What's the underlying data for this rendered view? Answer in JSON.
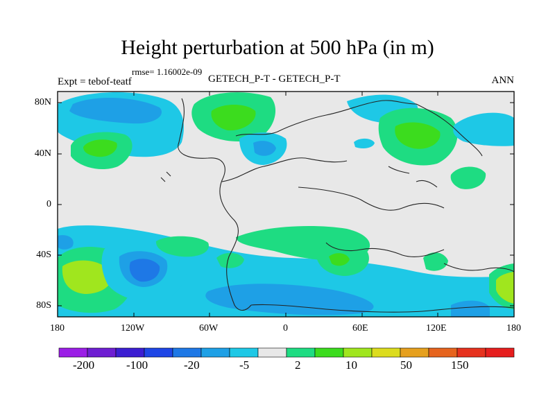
{
  "title": "Height perturbation at 500 hPa (in m)",
  "rmse": "rmse= 1.16002e-09",
  "left_label": "Expt = tebof-teatf",
  "center_label": "GETECH_P-T - GETECH_P-T",
  "season_label": "ANN",
  "y_ticks": [
    "80N",
    "40N",
    "0",
    "40S",
    "80S"
  ],
  "x_ticks": [
    "180",
    "120W",
    "60W",
    "0",
    "60E",
    "120E",
    "180"
  ],
  "colorbar": {
    "colors": [
      "#9b1ee6",
      "#6e1ed2",
      "#3c1ed2",
      "#1e46e6",
      "#1e78e6",
      "#1ea0e6",
      "#1ec8e6",
      "#e8e8e8",
      "#1edc82",
      "#3cdc1e",
      "#a0e61e",
      "#dcdc1e",
      "#e6a01e",
      "#e6641e",
      "#e6321e",
      "#e61e1e"
    ],
    "labels": [
      "-200",
      "-100",
      "-20",
      "-5",
      "2",
      "10",
      "50",
      "150"
    ]
  },
  "colors": {
    "background": "#e8e8e8",
    "pos_light": "#1edc82",
    "pos_mid": "#3cdc1e",
    "pos_high": "#a0e61e",
    "neg_light": "#1ec8e6",
    "neg_mid": "#1ea0e6",
    "neg_high": "#1e78e6"
  }
}
